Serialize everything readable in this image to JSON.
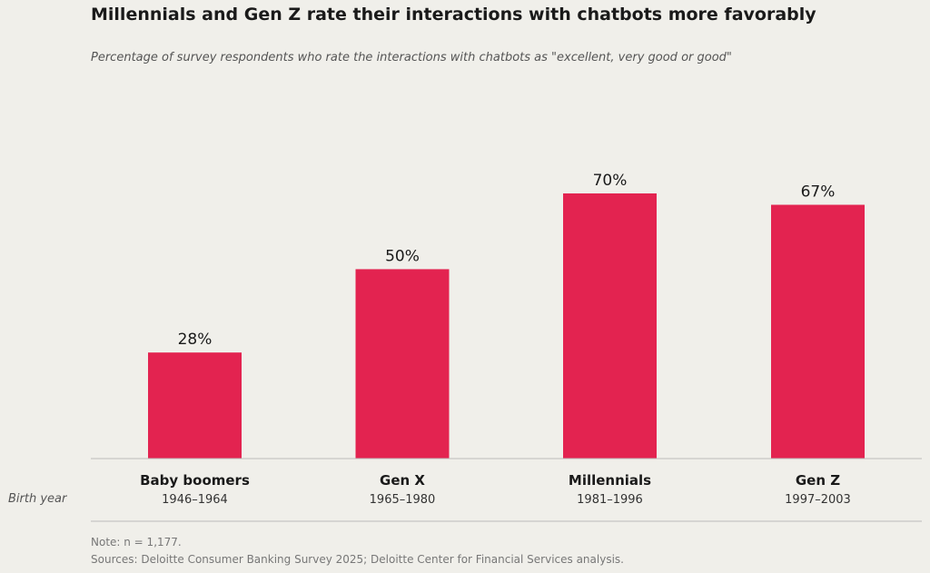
{
  "title": "Millennials and Gen Z rate their interactions with chatbots more favorably",
  "subtitle": "Percentage of survey respondents who rate the interactions with chatbots as \"excellent, very good or good\"",
  "row_label": "Birth year",
  "note": "Note: n = 1,177.",
  "sources": "Sources: Deloitte Consumer Banking Survey 2025; Deloitte Center for Financial Services analysis.",
  "colors": {
    "bar": "#e32350",
    "axis": "#bbbbbb",
    "background": "#f0efea"
  },
  "chart_data": {
    "type": "bar",
    "categories": [
      "Baby boomers",
      "Gen X",
      "Millennials",
      "Gen Z"
    ],
    "birth_years": [
      "1946–1964",
      "1965–1980",
      "1981–1996",
      "1997–2003"
    ],
    "values": [
      28,
      50,
      70,
      67
    ],
    "value_labels": [
      "28%",
      "50%",
      "70%",
      "67%"
    ],
    "ylim": [
      0,
      100
    ],
    "grid": false,
    "legend": "none"
  }
}
